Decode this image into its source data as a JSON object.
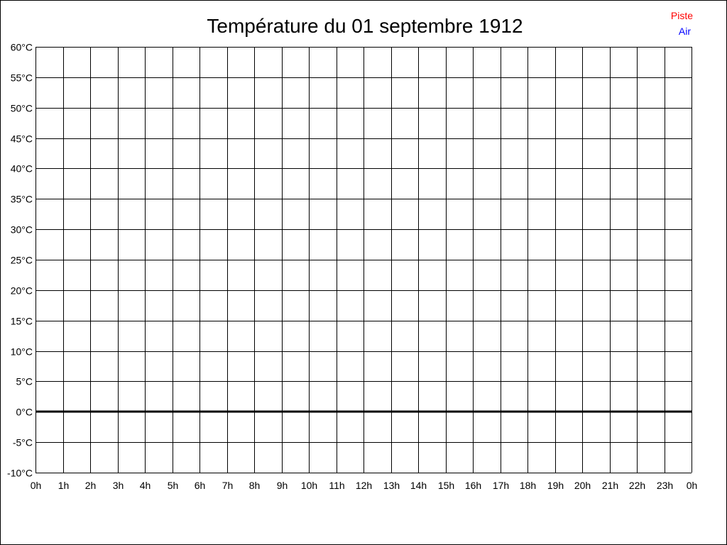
{
  "chart_data": {
    "type": "line",
    "title": "Température du 01 septembre 1912",
    "xlabel": "",
    "ylabel": "",
    "x_ticks": [
      "0h",
      "1h",
      "2h",
      "3h",
      "4h",
      "5h",
      "6h",
      "7h",
      "8h",
      "9h",
      "10h",
      "11h",
      "12h",
      "13h",
      "14h",
      "15h",
      "16h",
      "17h",
      "18h",
      "19h",
      "20h",
      "21h",
      "22h",
      "23h",
      "0h"
    ],
    "y_ticks": [
      "60°C",
      "55°C",
      "50°C",
      "45°C",
      "40°C",
      "35°C",
      "30°C",
      "25°C",
      "20°C",
      "15°C",
      "10°C",
      "5°C",
      "0°C",
      "-5°C",
      "-10°C"
    ],
    "xlim": [
      0,
      24
    ],
    "ylim": [
      -10,
      60
    ],
    "grid": true,
    "legend_position": "top-right",
    "series": [
      {
        "name": "Piste",
        "color": "#ff0000",
        "x": [],
        "y": []
      },
      {
        "name": "Air",
        "color": "#0000ff",
        "x": [],
        "y": []
      }
    ]
  }
}
